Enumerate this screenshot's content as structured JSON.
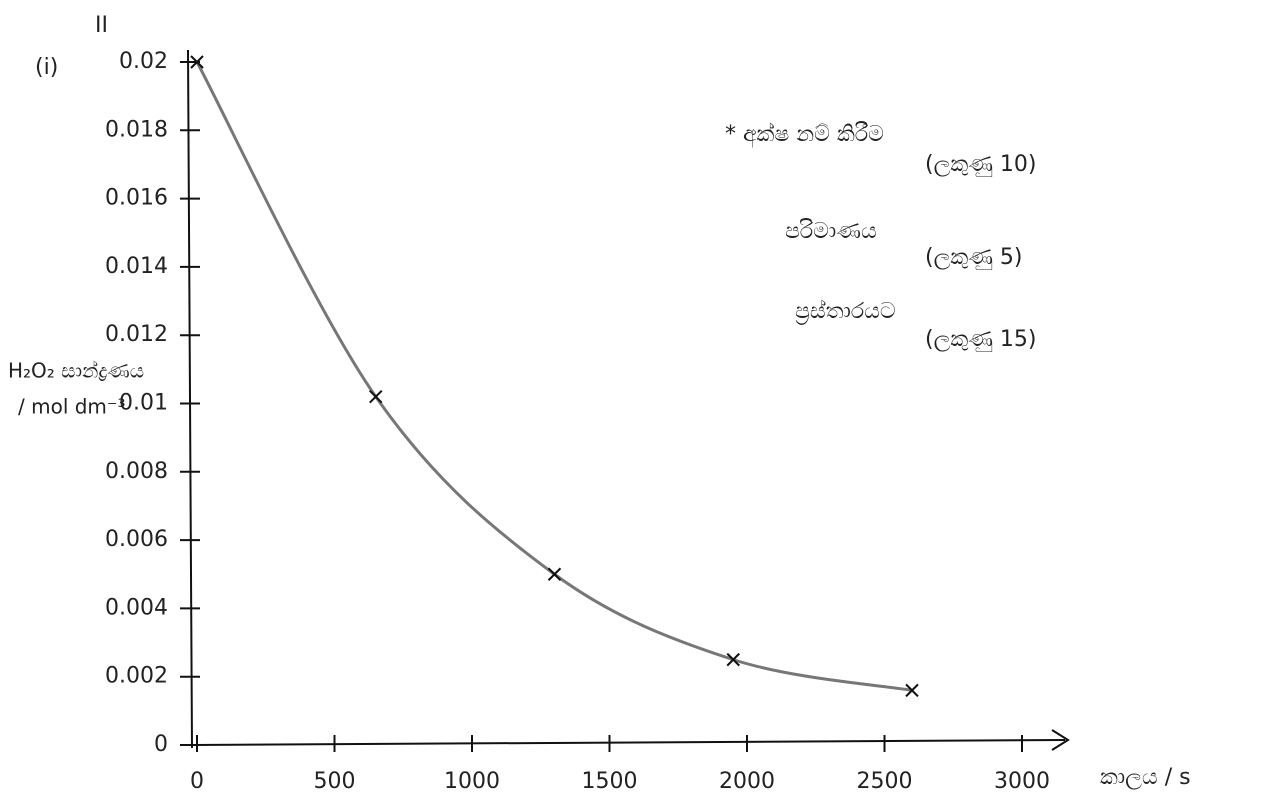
{
  "chart_data": {
    "type": "line",
    "section": "II",
    "part": "(i)",
    "y_label": "H₂O₂ සාන්ද්‍රණය",
    "y_unit": "/ mol dm⁻³",
    "x_label": "කාලය / s",
    "x": [
      0,
      650,
      1300,
      1950,
      2600
    ],
    "values": [
      0.02,
      0.0102,
      0.005,
      0.0025,
      0.0016
    ],
    "color": "#777777",
    "marker_color": "#111111",
    "xlim": [
      0,
      3000
    ],
    "xticks": [
      0,
      500,
      1000,
      1500,
      2000,
      2500,
      3000
    ],
    "ylim": [
      0,
      0.02
    ],
    "yticks": [
      0,
      0.002,
      0.004,
      0.006,
      0.008,
      0.01,
      0.012,
      0.014,
      0.016,
      0.018,
      0.02
    ],
    "annotations": [
      {
        "text": "* අක්ෂ නම් කිරීම",
        "marks": "(ලකුණු 10)"
      },
      {
        "text": "පරිමාණය",
        "marks": "(ලකුණු 5)"
      },
      {
        "text": "ප්‍රස්තාරයට",
        "marks": "(ලකුණු 15)"
      }
    ]
  }
}
